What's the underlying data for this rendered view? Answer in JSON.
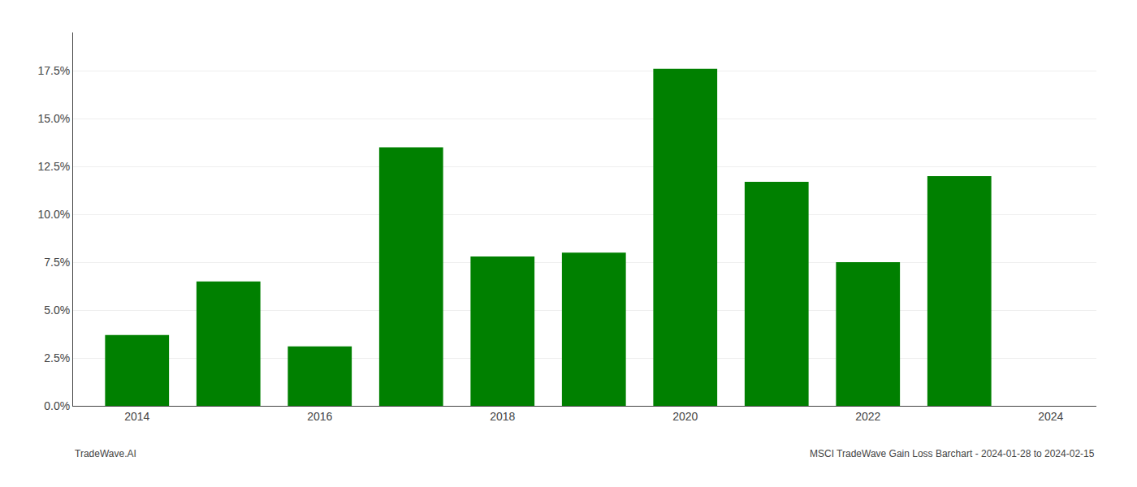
{
  "chart_data": {
    "type": "bar",
    "x": [
      2014,
      2015,
      2016,
      2017,
      2018,
      2019,
      2020,
      2021,
      2022,
      2023
    ],
    "values": [
      0.037,
      0.065,
      0.031,
      0.135,
      0.078,
      0.08,
      0.176,
      0.117,
      0.075,
      0.12
    ],
    "color": "#008000",
    "xlim": [
      2013.3,
      2024.5
    ],
    "xticks": [
      2014,
      2016,
      2018,
      2020,
      2022,
      2024
    ],
    "ylim": [
      0,
      0.195
    ],
    "yticks": [
      {
        "value": 0.0,
        "label": "0.0%"
      },
      {
        "value": 0.025,
        "label": "2.5%"
      },
      {
        "value": 0.05,
        "label": "5.0%"
      },
      {
        "value": 0.075,
        "label": "7.5%"
      },
      {
        "value": 0.1,
        "label": "10.0%"
      },
      {
        "value": 0.125,
        "label": "12.5%"
      },
      {
        "value": 0.15,
        "label": "15.0%"
      },
      {
        "value": 0.175,
        "label": "17.5%"
      }
    ],
    "grid": true,
    "annotations": [
      "TradeWave.AI",
      "MSCI TradeWave Gain Loss Barchart - 2024-01-28 to 2024-02-15"
    ]
  }
}
